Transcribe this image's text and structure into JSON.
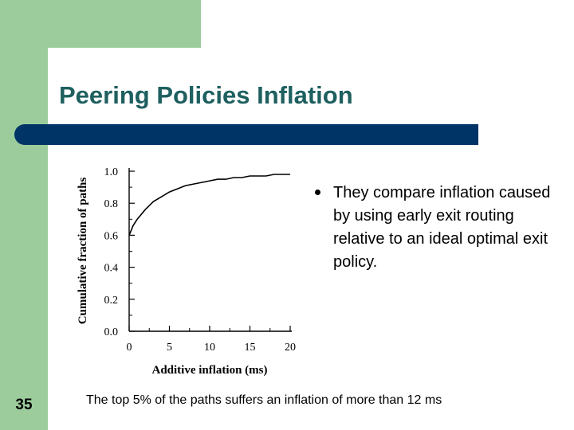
{
  "slide": {
    "title": "Peering Policies Inflation",
    "number": "35",
    "bullets": [
      "They compare inflation caused by using early exit routing relative to an ideal optimal exit policy."
    ],
    "caption": "The top 5% of the paths suffers an inflation of more than 12 ms",
    "colors": {
      "green": "#9ccc9c",
      "bar": "#003366",
      "title": "#1e5f5f"
    }
  },
  "chart_data": {
    "type": "line",
    "title": "",
    "xlabel": "Additive inflation (ms)",
    "ylabel": "Cumulative fraction of paths",
    "xlim": [
      0,
      20
    ],
    "ylim": [
      0.0,
      1.0
    ],
    "xticks": [
      "0",
      "5",
      "10",
      "15",
      "20"
    ],
    "yticks": [
      "0.0",
      "0.2",
      "0.4",
      "0.6",
      "0.8",
      "1.0"
    ],
    "grid": false,
    "series": [
      {
        "x": [
          0,
          0.5,
          1,
          2,
          3,
          4,
          5,
          6,
          7,
          8,
          9,
          10,
          11,
          12,
          13,
          14,
          15,
          16,
          17,
          18,
          19,
          20
        ],
        "y": [
          0.6,
          0.66,
          0.7,
          0.76,
          0.81,
          0.84,
          0.87,
          0.89,
          0.91,
          0.92,
          0.93,
          0.94,
          0.95,
          0.95,
          0.96,
          0.96,
          0.97,
          0.97,
          0.97,
          0.98,
          0.98,
          0.98
        ]
      }
    ]
  }
}
